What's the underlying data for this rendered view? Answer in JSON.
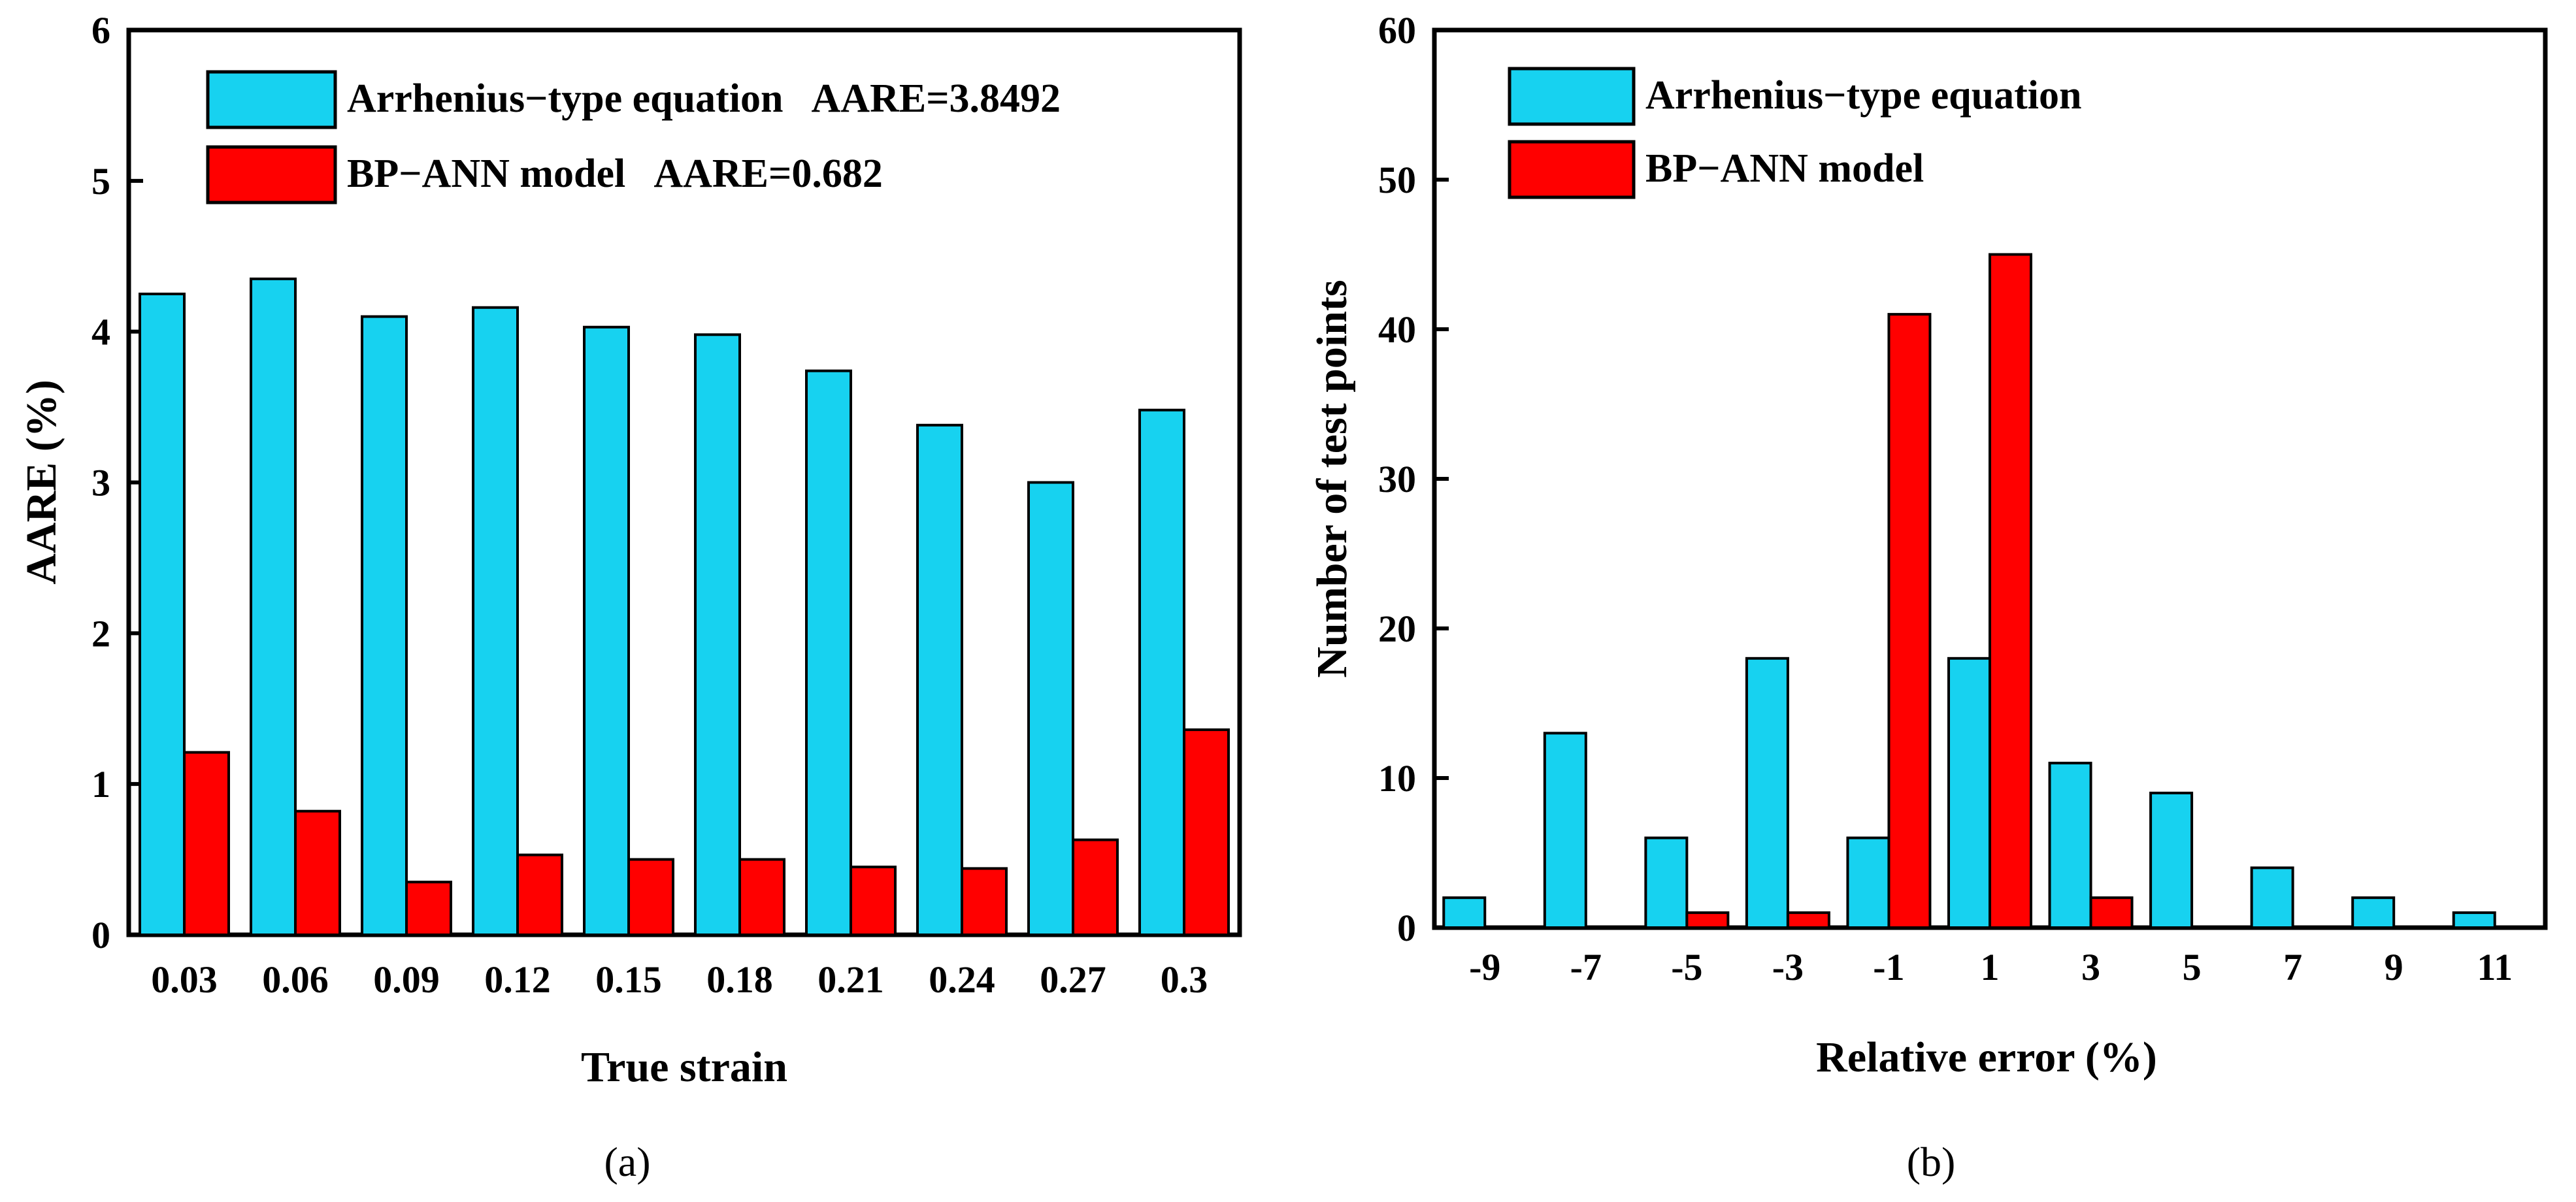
{
  "chart_data": [
    {
      "type": "bar",
      "panel_label": "(a)",
      "xlabel": "True strain",
      "ylabel": "AARE (%)",
      "ylim": [
        0,
        6
      ],
      "yticks": [
        "0",
        "1",
        "2",
        "3",
        "4",
        "5",
        "6"
      ],
      "categories": [
        "0.03",
        "0.06",
        "0.09",
        "0.12",
        "0.15",
        "0.18",
        "0.21",
        "0.24",
        "0.27",
        "0.3"
      ],
      "series": [
        {
          "name": "Arrhenius−type equation",
          "legend_label": "Arrhenius−type equation   AARE=3.8492",
          "color": "#17d2f0",
          "values": [
            4.25,
            4.35,
            4.1,
            4.16,
            4.03,
            3.98,
            3.74,
            3.38,
            3.0,
            3.48
          ]
        },
        {
          "name": "BP−ANN model",
          "legend_label": "BP−ANN model   AARE=0.682",
          "color": "#ff0000",
          "values": [
            1.21,
            0.82,
            0.35,
            0.53,
            0.5,
            0.5,
            0.45,
            0.44,
            0.63,
            1.36
          ]
        }
      ],
      "legend_position": "top-left",
      "grid": false
    },
    {
      "type": "bar",
      "panel_label": "(b)",
      "xlabel": "Relative error (%)",
      "ylabel": "Number of test points",
      "ylim": [
        0,
        60
      ],
      "yticks": [
        "0",
        "10",
        "20",
        "30",
        "40",
        "50",
        "60"
      ],
      "categories": [
        "-9",
        "-7",
        "-5",
        "-3",
        "-1",
        "1",
        "3",
        "5",
        "7",
        "9",
        "11"
      ],
      "series": [
        {
          "name": "Arrhenius−type equation",
          "legend_label": "Arrhenius−type equation",
          "color": "#17d2f0",
          "values": [
            2,
            13,
            6,
            18,
            6,
            18,
            11,
            9,
            4,
            2,
            1
          ]
        },
        {
          "name": "BP−ANN model",
          "legend_label": "BP−ANN model",
          "color": "#ff0000",
          "values": [
            0,
            0,
            1,
            1,
            41,
            45,
            2,
            0,
            0,
            0,
            0
          ]
        }
      ],
      "legend_position": "top-left",
      "grid": false
    }
  ]
}
